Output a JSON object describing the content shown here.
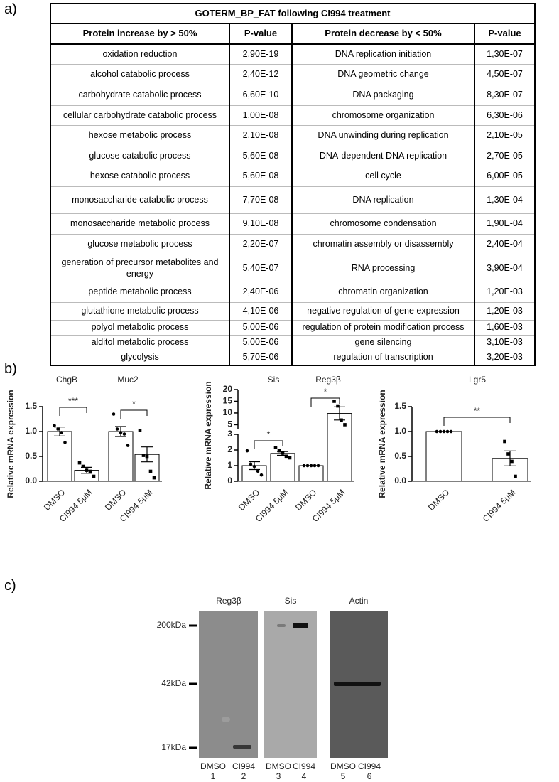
{
  "panels": {
    "a": "a)",
    "b": "b)",
    "c": "c)"
  },
  "table": {
    "title": "GOTERM_BP_FAT following CI994 treatment",
    "header": [
      "Protein increase by > 50%",
      "P-value",
      "Protein decrease  by < 50%",
      "P-value"
    ],
    "rows": [
      [
        "oxidation reduction",
        "2,90E-19",
        "DNA replication initiation",
        "1,30E-07"
      ],
      [
        "alcohol catabolic process",
        "2,40E-12",
        "DNA geometric change",
        "4,50E-07"
      ],
      [
        "carbohydrate catabolic process",
        "6,60E-10",
        "DNA packaging",
        "8,30E-07"
      ],
      [
        "cellular carbohydrate catabolic process",
        "1,00E-08",
        "chromosome organization",
        "6,30E-06"
      ],
      [
        "hexose metabolic process",
        "2,10E-08",
        "DNA unwinding during replication",
        "2,10E-05"
      ],
      [
        "glucose catabolic process",
        "5,60E-08",
        "DNA-dependent DNA replication",
        "2,70E-05"
      ],
      [
        "hexose catabolic process",
        "5,60E-08",
        "cell cycle",
        "6,00E-05"
      ],
      [
        "monosaccharide catabolic process",
        "7,70E-08",
        "DNA replication",
        "1,30E-04"
      ],
      [
        "monosaccharide metabolic process",
        "9,10E-08",
        "chromosome condensation",
        "1,90E-04"
      ],
      [
        "glucose metabolic process",
        "2,20E-07",
        "chromatin assembly or disassembly",
        "2,40E-04"
      ],
      [
        "generation of precursor metabolites and energy",
        "5,40E-07",
        "RNA processing",
        "3,90E-04"
      ],
      [
        "peptide metabolic process",
        "2,40E-06",
        "chromatin organization",
        "1,20E-03"
      ],
      [
        "glutathione metabolic process",
        "4,10E-06",
        "negative regulation of gene expression",
        "1,20E-03"
      ],
      [
        "polyol metabolic process",
        "5,00E-06",
        "regulation of protein modification process",
        "1,60E-03"
      ],
      [
        "alditol metabolic process",
        "5,00E-06",
        "gene silencing",
        "3,10E-03"
      ],
      [
        "glycolysis",
        "5,70E-06",
        "regulation of transcription",
        "3,20E-03"
      ]
    ]
  },
  "chart_data": [
    {
      "type": "bar",
      "groups": [
        "ChgB",
        "Muc2"
      ],
      "categories": [
        "DMSO",
        "CI994 5μM",
        "DMSO",
        "CI994 5μM"
      ],
      "ylabel": "Relative mRNA expression",
      "color": "#ffffff",
      "values": [
        1.0,
        0.22,
        1.0,
        0.54
      ],
      "errors": [
        0.09,
        0.06,
        0.1,
        0.15
      ],
      "points": [
        [
          1.12,
          1.05,
          0.98,
          0.78
        ],
        [
          0.37,
          0.3,
          0.22,
          0.2,
          0.1
        ],
        [
          1.35,
          1.05,
          0.98,
          0.95,
          0.72
        ],
        [
          1.02,
          0.52,
          0.5,
          0.2,
          0.07
        ]
      ],
      "significance": [
        "***",
        "*"
      ],
      "ylim": [
        0,
        1.5
      ],
      "yticks": [
        {
          "value": 0,
          "label": "0.0"
        },
        0.5,
        {
          "value": 1,
          "label": "1.0"
        },
        1.5
      ]
    },
    {
      "type": "bar",
      "groups": [
        "Sis",
        "Reg3β"
      ],
      "categories": [
        "DMSO",
        "CI994 5μM",
        "DMSO",
        "CI994 5μM"
      ],
      "ylabel": "Relative mRNA expression",
      "color": "#ffffff",
      "values": [
        1.0,
        1.78,
        1.0,
        9.8
      ],
      "errors": [
        0.25,
        0.12,
        0,
        2.8
      ],
      "points": [
        [
          1.95,
          1.1,
          0.95,
          0.65,
          0.4
        ],
        [
          2.15,
          1.95,
          1.8,
          1.6,
          1.5
        ],
        [
          1,
          1,
          1,
          1,
          1
        ],
        [
          15,
          13,
          7,
          5
        ]
      ],
      "significance": [
        "*",
        "*"
      ],
      "y_segments": [
        {
          "lim": [
            0,
            3
          ],
          "ticks": [
            0,
            1,
            2,
            3
          ]
        },
        {
          "lim": [
            3,
            20
          ],
          "ticks": [
            5,
            10,
            15,
            20
          ]
        }
      ]
    },
    {
      "type": "bar",
      "groups": [
        "Lgr5"
      ],
      "categories": [
        "DMSO",
        "CI994 5μM"
      ],
      "ylabel": "Relative mRNA expression",
      "color": "#ffffff",
      "values": [
        1.0,
        0.46
      ],
      "errors": [
        0,
        0.15
      ],
      "points": [
        [
          1,
          1,
          1,
          1,
          1
        ],
        [
          0.8,
          0.55,
          0.4,
          0.1
        ]
      ],
      "significance": [
        "**"
      ],
      "ylim": [
        0,
        1.5
      ],
      "yticks": [
        {
          "value": 0,
          "label": "0.0"
        },
        0.5,
        {
          "value": 1,
          "label": "1.0"
        },
        1.5
      ]
    }
  ],
  "blot": {
    "targets": [
      "Reg3β",
      "Sis",
      "Actin"
    ],
    "markers": [
      "200kDa",
      "42kDa",
      "17kDa"
    ],
    "lanes": [
      "DMSO",
      "CI994",
      "DMSO",
      "CI994",
      "DMSO",
      "CI994"
    ],
    "lane_numbers": [
      1,
      2,
      3,
      4,
      5,
      6
    ]
  }
}
